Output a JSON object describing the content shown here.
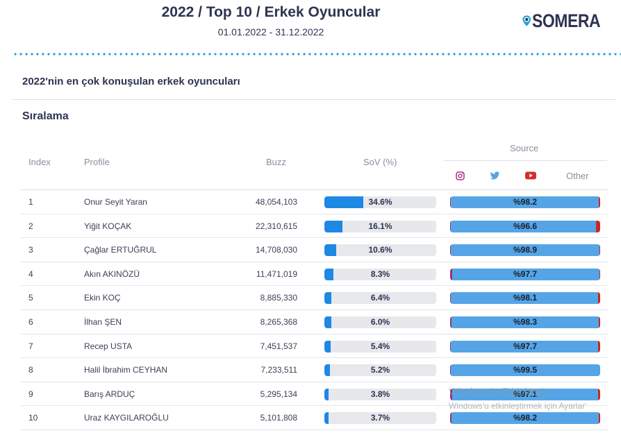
{
  "header": {
    "title": "2022 / Top 10 / Erkek Oyuncular",
    "date_range": "01.01.2022 - 31.12.2022",
    "logo_text": "SOMERA",
    "accent": "#1fa3d9"
  },
  "section": {
    "title": "2022'nin en çok konuşulan erkek oyuncuları",
    "subtitle": "Sıralama"
  },
  "table": {
    "headers": {
      "index": "Index",
      "profile": "Profile",
      "buzz": "Buzz",
      "sov": "SoV (%)",
      "source": "Source",
      "other": "Other"
    },
    "source_icons": [
      "instagram-icon",
      "twitter-icon",
      "youtube-icon"
    ],
    "rows": [
      {
        "index": "1",
        "profile": "Onur Seyit Yaran",
        "buzz": "48,054,103",
        "sov_label": "34.6%",
        "sov": 34.6,
        "source_label": "%98.2",
        "twitter": 98.2,
        "instagram": 0.4,
        "youtube": 0.9
      },
      {
        "index": "2",
        "profile": "Yiğit KOÇAK",
        "buzz": "22,310,615",
        "sov_label": "16.1%",
        "sov": 16.1,
        "source_label": "%96.6",
        "twitter": 96.6,
        "instagram": 0.3,
        "youtube": 3.0
      },
      {
        "index": "3",
        "profile": "Çağlar ERTUĞRUL",
        "buzz": "14,708,030",
        "sov_label": "10.6%",
        "sov": 10.6,
        "source_label": "%98.9",
        "twitter": 98.9,
        "instagram": 0.6,
        "youtube": 0.4
      },
      {
        "index": "4",
        "profile": "Akın AKINÖZÜ",
        "buzz": "11,471,019",
        "sov_label": "8.3%",
        "sov": 8.3,
        "source_label": "%97.7",
        "twitter": 97.7,
        "instagram": 1.6,
        "youtube": 0.6
      },
      {
        "index": "5",
        "profile": "Ekin KOÇ",
        "buzz": "8,885,330",
        "sov_label": "6.4%",
        "sov": 6.4,
        "source_label": "%98.1",
        "twitter": 98.1,
        "instagram": 0.6,
        "youtube": 1.2
      },
      {
        "index": "6",
        "profile": "İlhan ŞEN",
        "buzz": "8,265,368",
        "sov_label": "6.0%",
        "sov": 6.0,
        "source_label": "%98.3",
        "twitter": 98.3,
        "instagram": 0.8,
        "youtube": 0.8
      },
      {
        "index": "7",
        "profile": "Recep USTA",
        "buzz": "7,451,537",
        "sov_label": "5.4%",
        "sov": 5.4,
        "source_label": "%97.7",
        "twitter": 97.7,
        "instagram": 0.6,
        "youtube": 1.6
      },
      {
        "index": "8",
        "profile": "Halil İbrahim CEYHAN",
        "buzz": "7,233,511",
        "sov_label": "5.2%",
        "sov": 5.2,
        "source_label": "%99.5",
        "twitter": 99.5,
        "instagram": 0.3,
        "youtube": 0.1
      },
      {
        "index": "9",
        "profile": "Barış ARDUÇ",
        "buzz": "5,295,134",
        "sov_label": "3.8%",
        "sov": 3.8,
        "source_label": "%97.1",
        "twitter": 97.1,
        "instagram": 1.4,
        "youtube": 1.4
      },
      {
        "index": "10",
        "profile": "Uraz KAYGILAROĞLU",
        "buzz": "5,101,808",
        "sov_label": "3.7%",
        "sov": 3.7,
        "source_label": "%98.2",
        "twitter": 98.2,
        "instagram": 0.8,
        "youtube": 0.9
      }
    ]
  },
  "colors": {
    "sov_fill": "#1e88e5",
    "twitter": "#55a5e6",
    "instagram": "#9b2f7b",
    "youtube": "#c62828",
    "track": "#e7e8ec"
  },
  "watermark": {
    "line1": "Windows'u Etkinleştir",
    "line2": "Windows'u etkinleştirmek için Ayarlar'"
  }
}
